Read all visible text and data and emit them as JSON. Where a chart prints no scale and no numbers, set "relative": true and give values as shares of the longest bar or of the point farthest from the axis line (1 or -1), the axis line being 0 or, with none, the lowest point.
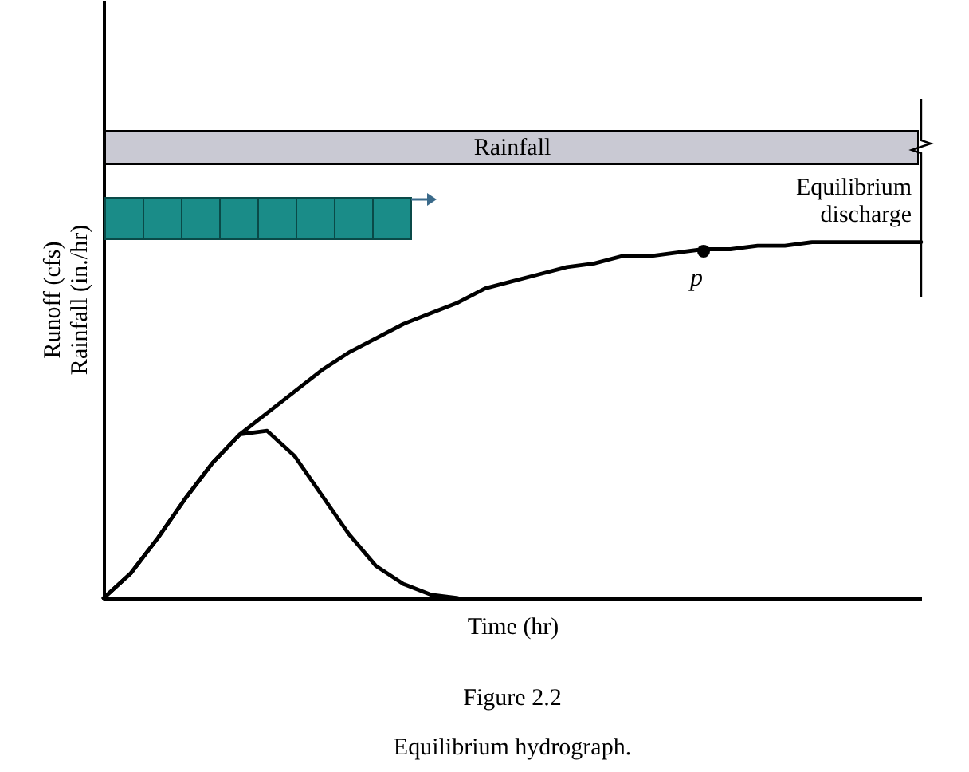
{
  "chart_data": {
    "type": "line",
    "relative": true,
    "title": "Figure 2.2",
    "subtitle": "Equilibrium hydrograph.",
    "xlabel": "Time (hr)",
    "ylabel": "Runoff (cfs)\nRainfall (in./hr)",
    "categories": [
      null,
      null,
      null,
      null,
      null,
      null,
      null,
      null,
      null,
      null,
      null,
      null,
      null,
      null,
      null,
      null,
      null,
      null,
      null,
      null,
      null,
      null,
      null,
      null,
      null,
      null,
      null,
      null,
      null,
      null,
      null
    ],
    "series": [
      {
        "color": "#000000",
        "values": [
          0,
          0.07,
          0.17,
          0.28,
          0.38,
          0.46,
          0.52,
          0.58,
          0.64,
          0.69,
          0.73,
          0.77,
          0.8,
          0.83,
          0.87,
          0.89,
          0.91,
          0.93,
          0.94,
          0.96,
          0.96,
          0.97,
          0.98,
          0.98,
          0.99,
          0.99,
          1,
          1,
          1,
          1,
          1
        ]
      },
      {
        "color": "#000000",
        "values": [
          0,
          0.07,
          0.17,
          0.28,
          0.38,
          0.46,
          0.47,
          0.4,
          0.29,
          0.18,
          0.09,
          0.04,
          0.01,
          0,
          null,
          null,
          null,
          null,
          null,
          null,
          null,
          null,
          null,
          null,
          null,
          null,
          null,
          null,
          null,
          null,
          null
        ]
      }
    ],
    "annotations": [
      "Rainfall",
      "Equilibrium\ndischarge",
      "p"
    ],
    "grid": false
  }
}
